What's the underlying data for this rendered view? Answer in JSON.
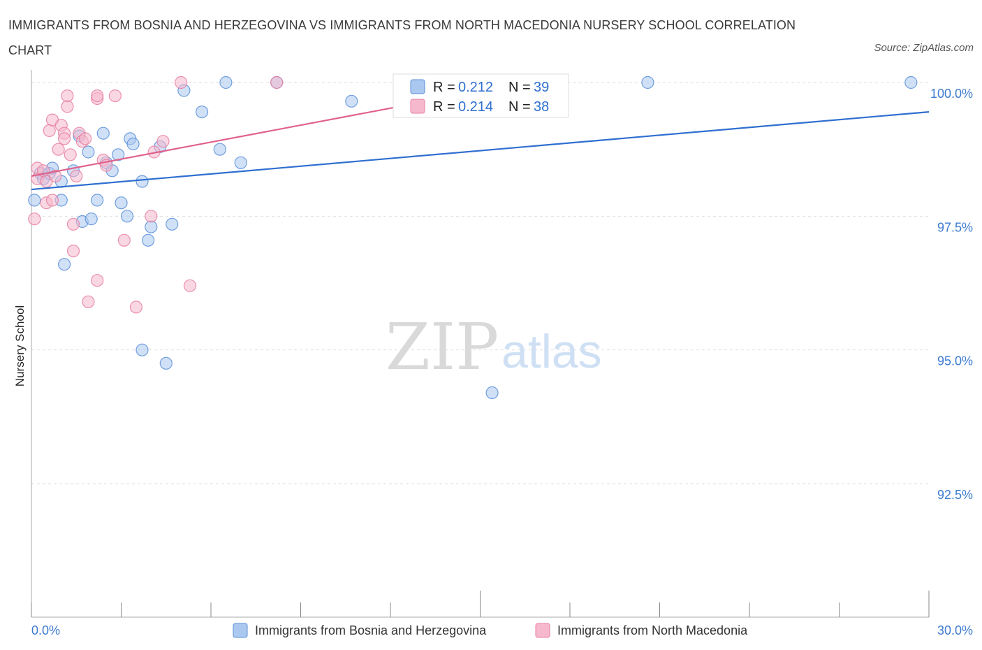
{
  "header": {
    "title": "IMMIGRANTS FROM BOSNIA AND HERZEGOVINA VS IMMIGRANTS FROM NORTH MACEDONIA NURSERY SCHOOL CORRELATION CHART",
    "source": "Source: ZipAtlas.com"
  },
  "watermark": {
    "zip": "ZIP",
    "atlas": "atlas"
  },
  "colors": {
    "blue_fill": "#aac8f0",
    "blue_stroke": "#5b8fd8",
    "blue_line": "#2f6fd0",
    "pink_fill": "#f5b8cc",
    "pink_stroke": "#e87fa0",
    "pink_line": "#e0608c",
    "tick_text": "#3d7bd0",
    "grid": "#dddddd"
  },
  "legend_top": {
    "rows": [
      {
        "r_label": "R = ",
        "r_value": "0.212",
        "n_label": "N = ",
        "n_value": "39"
      },
      {
        "r_label": "R = ",
        "r_value": "0.214",
        "n_label": "N = ",
        "n_value": "38"
      }
    ]
  },
  "chart_data": {
    "type": "scatter",
    "title": "IMMIGRANTS FROM BOSNIA AND HERZEGOVINA VS IMMIGRANTS FROM NORTH MACEDONIA NURSERY SCHOOL CORRELATION CHART",
    "xlabel": "",
    "ylabel": "Nursery School",
    "xlim": [
      0,
      30
    ],
    "ylim": [
      90.0,
      100.5
    ],
    "x_tick_labels": [
      {
        "value": 0,
        "label": "0.0%"
      },
      {
        "value": 30,
        "label": "30.0%"
      }
    ],
    "y_ticks": [
      {
        "value": 100.0,
        "label": "100.0%"
      },
      {
        "value": 97.5,
        "label": "97.5%"
      },
      {
        "value": 95.0,
        "label": "95.0%"
      },
      {
        "value": 92.5,
        "label": "92.5%"
      }
    ],
    "legend_position": "bottom-center",
    "series": [
      {
        "name": "Immigrants from Bosnia and Herzegovina",
        "color": "blue",
        "trend": {
          "x0": 0,
          "y0": 98.0,
          "x1": 30,
          "y1": 99.45
        },
        "points": [
          [
            0.1,
            97.8
          ],
          [
            0.3,
            98.3
          ],
          [
            0.4,
            98.2
          ],
          [
            0.6,
            98.3
          ],
          [
            0.7,
            98.4
          ],
          [
            1.0,
            97.8
          ],
          [
            1.0,
            98.15
          ],
          [
            1.1,
            96.6
          ],
          [
            1.4,
            98.35
          ],
          [
            1.6,
            99.0
          ],
          [
            1.7,
            97.4
          ],
          [
            1.9,
            98.7
          ],
          [
            2.0,
            97.45
          ],
          [
            2.2,
            97.8
          ],
          [
            2.4,
            99.05
          ],
          [
            2.5,
            98.5
          ],
          [
            2.7,
            98.35
          ],
          [
            2.9,
            98.65
          ],
          [
            3.0,
            97.75
          ],
          [
            3.2,
            97.5
          ],
          [
            3.3,
            98.95
          ],
          [
            3.4,
            98.85
          ],
          [
            3.7,
            95.0
          ],
          [
            3.7,
            98.15
          ],
          [
            3.9,
            97.05
          ],
          [
            4.0,
            97.3
          ],
          [
            4.3,
            98.8
          ],
          [
            4.5,
            94.75
          ],
          [
            4.7,
            97.35
          ],
          [
            5.1,
            99.85
          ],
          [
            5.7,
            99.45
          ],
          [
            6.3,
            98.75
          ],
          [
            6.5,
            100.0
          ],
          [
            7.0,
            98.5
          ],
          [
            8.2,
            100.0
          ],
          [
            10.7,
            99.65
          ],
          [
            15.4,
            94.2
          ],
          [
            20.6,
            100.0
          ],
          [
            29.4,
            100.0
          ]
        ]
      },
      {
        "name": "Immigrants from North Macedonia",
        "color": "pink",
        "trend": {
          "x0": 0,
          "y0": 98.25,
          "x1": 15.6,
          "y1": 99.9
        },
        "points": [
          [
            0.1,
            97.45
          ],
          [
            0.2,
            98.4
          ],
          [
            0.2,
            98.2
          ],
          [
            0.4,
            98.35
          ],
          [
            0.5,
            97.75
          ],
          [
            0.5,
            98.15
          ],
          [
            0.6,
            99.1
          ],
          [
            0.7,
            97.8
          ],
          [
            0.7,
            99.3
          ],
          [
            0.8,
            98.25
          ],
          [
            0.9,
            98.75
          ],
          [
            1.0,
            99.2
          ],
          [
            1.1,
            99.05
          ],
          [
            1.1,
            98.95
          ],
          [
            1.2,
            99.55
          ],
          [
            1.2,
            99.75
          ],
          [
            1.3,
            98.65
          ],
          [
            1.4,
            97.35
          ],
          [
            1.4,
            96.85
          ],
          [
            1.5,
            98.25
          ],
          [
            1.6,
            99.05
          ],
          [
            1.7,
            98.9
          ],
          [
            1.8,
            98.95
          ],
          [
            1.9,
            95.9
          ],
          [
            2.2,
            99.7
          ],
          [
            2.2,
            99.75
          ],
          [
            2.4,
            98.55
          ],
          [
            2.5,
            98.45
          ],
          [
            2.2,
            96.3
          ],
          [
            2.8,
            99.75
          ],
          [
            3.1,
            97.05
          ],
          [
            3.5,
            95.8
          ],
          [
            4.0,
            97.5
          ],
          [
            4.1,
            98.7
          ],
          [
            4.4,
            98.9
          ],
          [
            5.0,
            100.0
          ],
          [
            5.3,
            96.2
          ],
          [
            8.2,
            100.0
          ]
        ]
      }
    ]
  }
}
